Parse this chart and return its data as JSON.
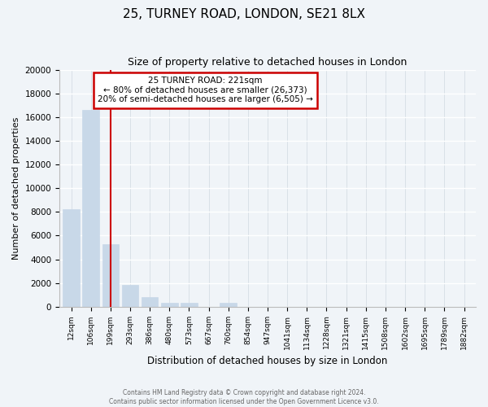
{
  "title": "25, TURNEY ROAD, LONDON, SE21 8LX",
  "subtitle": "Size of property relative to detached houses in London",
  "xlabel": "Distribution of detached houses by size in London",
  "ylabel": "Number of detached properties",
  "bar_labels": [
    "12sqm",
    "106sqm",
    "199sqm",
    "293sqm",
    "386sqm",
    "480sqm",
    "573sqm",
    "667sqm",
    "760sqm",
    "854sqm",
    "947sqm",
    "1041sqm",
    "1134sqm",
    "1228sqm",
    "1321sqm",
    "1415sqm",
    "1508sqm",
    "1602sqm",
    "1695sqm",
    "1789sqm",
    "1882sqm"
  ],
  "bar_values": [
    8200,
    16600,
    5300,
    1850,
    800,
    300,
    300,
    0,
    300,
    0,
    0,
    0,
    0,
    0,
    0,
    0,
    0,
    0,
    0,
    0,
    0
  ],
  "bar_color": "#c8d8e8",
  "bar_edge_color": "#c8d8e8",
  "property_line_x": 2,
  "property_line_label": "25 TURNEY ROAD: 221sqm",
  "annotation_line1": "← 80% of detached houses are smaller (26,373)",
  "annotation_line2": "20% of semi-detached houses are larger (6,505) →",
  "annotation_box_color": "#ffffff",
  "annotation_box_edge": "#cc0000",
  "line_color": "#cc0000",
  "ylim": [
    0,
    20000
  ],
  "yticks": [
    0,
    2000,
    4000,
    6000,
    8000,
    10000,
    12000,
    14000,
    16000,
    18000,
    20000
  ],
  "footer1": "Contains HM Land Registry data © Crown copyright and database right 2024.",
  "footer2": "Contains public sector information licensed under the Open Government Licence v3.0.",
  "background_color": "#f0f4f8",
  "plot_bg_color": "#f0f4f8",
  "grid_color": "#d0d8e0"
}
